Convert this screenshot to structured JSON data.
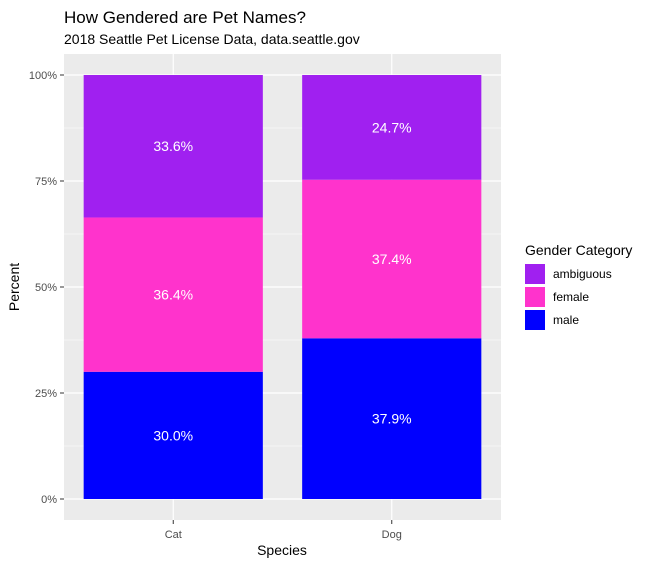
{
  "chart_data": {
    "type": "bar",
    "stacked": true,
    "title": "How Gendered are Pet Names?",
    "subtitle": "2018 Seattle Pet License Data, data.seattle.gov",
    "xlabel": "Species",
    "ylabel": "Percent",
    "categories": [
      "Cat",
      "Dog"
    ],
    "ylim": [
      0,
      100
    ],
    "yticks": [
      {
        "value": 0,
        "label": "0%"
      },
      {
        "value": 25,
        "label": "25%"
      },
      {
        "value": 50,
        "label": "50%"
      },
      {
        "value": 75,
        "label": "75%"
      },
      {
        "value": 100,
        "label": "100%"
      }
    ],
    "series": [
      {
        "name": "male",
        "color": "#0000ff",
        "values": [
          30.0,
          37.9
        ],
        "labels": [
          "30.0%",
          "37.9%"
        ]
      },
      {
        "name": "female",
        "color": "#ff33cc",
        "values": [
          36.4,
          37.4
        ],
        "labels": [
          "36.4%",
          "37.4%"
        ]
      },
      {
        "name": "ambiguous",
        "color": "#a020f0",
        "values": [
          33.6,
          24.7
        ],
        "labels": [
          "33.6%",
          "24.7%"
        ]
      }
    ],
    "legend": {
      "title": "Gender Category",
      "position": "right",
      "order": [
        "ambiguous",
        "female",
        "male"
      ]
    },
    "grid": true,
    "panel_background": "#ebebeb"
  }
}
